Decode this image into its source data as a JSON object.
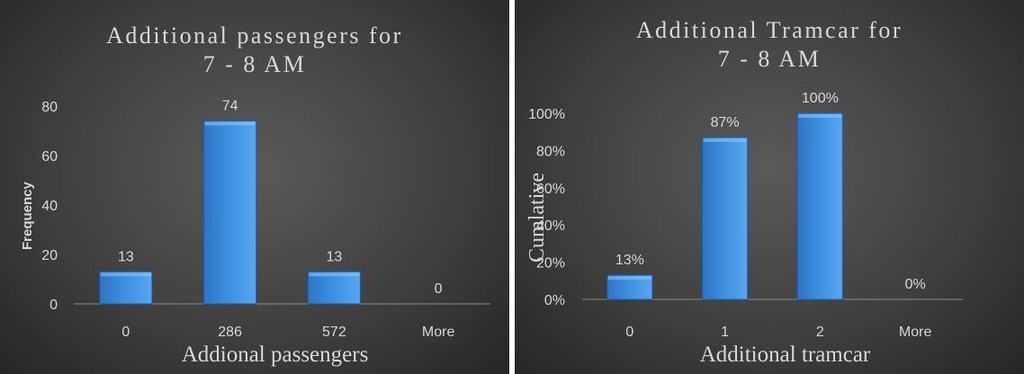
{
  "chart_data": [
    {
      "type": "bar",
      "title_lines": [
        "Additional passengers for",
        "7 - 8 AM"
      ],
      "xlabel": "Addional passengers",
      "ylabel": "Frequency",
      "categories": [
        "0",
        "286",
        "572",
        "More"
      ],
      "values": [
        13,
        74,
        13,
        0
      ],
      "data_labels": [
        "13",
        "74",
        "13",
        "0"
      ],
      "yticks": [
        "0",
        "20",
        "40",
        "60",
        "80"
      ],
      "ytick_values": [
        0,
        20,
        40,
        60,
        80
      ],
      "ylim": [
        0,
        80
      ],
      "grid": false,
      "legend": "none",
      "bar_color": "#3d8ee0"
    },
    {
      "type": "bar",
      "title_lines": [
        "Additional Tramcar for",
        "7 - 8 AM"
      ],
      "xlabel": "Additional tramcar",
      "ylabel": "Cumlative",
      "categories": [
        "0",
        "1",
        "2",
        "More"
      ],
      "values": [
        0.13,
        0.87,
        1.0,
        0
      ],
      "data_labels": [
        "13%",
        "87%",
        "100%",
        "0%"
      ],
      "yticks": [
        "0%",
        "20%",
        "40%",
        "60%",
        "80%",
        "100%"
      ],
      "ytick_values": [
        0,
        0.2,
        0.4,
        0.6,
        0.8,
        1.0
      ],
      "ylim": [
        0,
        1.0
      ],
      "grid": false,
      "legend": "none",
      "bar_color": "#3d8ee0"
    }
  ]
}
